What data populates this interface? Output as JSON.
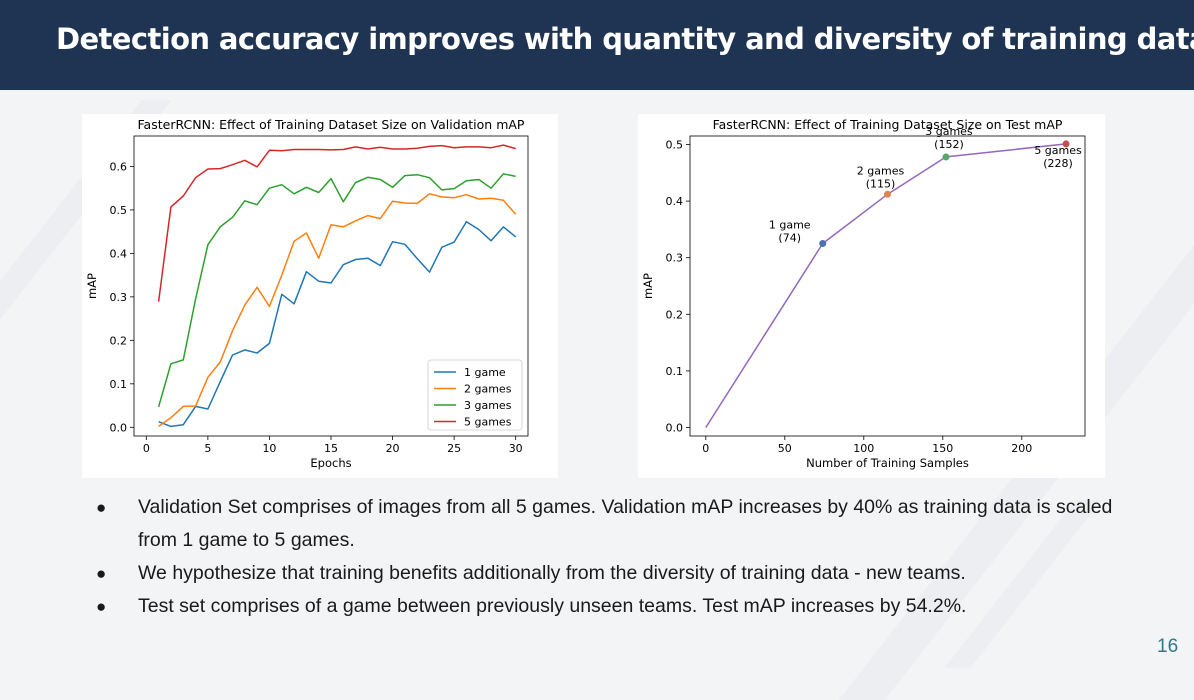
{
  "slide": {
    "title": "Detection accuracy improves with quantity and diversity of training data.",
    "page_number": "16",
    "bullets": [
      "Validation Set comprises of images from all 5 games. Validation mAP increases by 40% as training data is scaled from 1 game to 5 games.",
      "We hypothesize that training benefits additionally from the diversity of training data - new teams.",
      "Test set comprises of a game between previously unseen teams. Test mAP increases by 54.2%."
    ],
    "bullet_symbol": "●"
  },
  "chart_data": [
    {
      "type": "line",
      "title": "FasterRCNN: Effect of Training Dataset Size on Validation mAP",
      "xlabel": "Epochs",
      "ylabel": "mAP",
      "xlim": [
        -1,
        31
      ],
      "ylim": [
        -0.02,
        0.67
      ],
      "xticks": [
        "0",
        "5",
        "10",
        "15",
        "20",
        "25",
        "30"
      ],
      "yticks": [
        "0.0",
        "0.1",
        "0.2",
        "0.3",
        "0.4",
        "0.5",
        "0.6"
      ],
      "legend": "bottom-right",
      "grid": false,
      "x": [
        1,
        2,
        3,
        4,
        5,
        6,
        7,
        8,
        9,
        10,
        11,
        12,
        13,
        14,
        15,
        16,
        17,
        18,
        19,
        20,
        21,
        22,
        23,
        24,
        25,
        26,
        27,
        28,
        29,
        30
      ],
      "series": [
        {
          "name": "1 game",
          "color": "#1f77b4",
          "values": [
            0.013,
            0.002,
            0.006,
            0.048,
            0.042,
            0.105,
            0.166,
            0.178,
            0.171,
            0.193,
            0.306,
            0.284,
            0.358,
            0.336,
            0.332,
            0.374,
            0.386,
            0.389,
            0.372,
            0.427,
            0.421,
            0.388,
            0.357,
            0.414,
            0.426,
            0.473,
            0.455,
            0.429,
            0.461,
            0.438
          ]
        },
        {
          "name": "2 games",
          "color": "#ff7f0e",
          "values": [
            0.002,
            0.022,
            0.048,
            0.049,
            0.115,
            0.15,
            0.222,
            0.281,
            0.322,
            0.278,
            0.35,
            0.428,
            0.447,
            0.389,
            0.466,
            0.461,
            0.475,
            0.487,
            0.48,
            0.52,
            0.516,
            0.515,
            0.537,
            0.53,
            0.528,
            0.535,
            0.525,
            0.527,
            0.522,
            0.49
          ]
        },
        {
          "name": "3 games",
          "color": "#2ca02c",
          "values": [
            0.047,
            0.146,
            0.155,
            0.295,
            0.42,
            0.461,
            0.483,
            0.521,
            0.512,
            0.55,
            0.558,
            0.537,
            0.552,
            0.54,
            0.572,
            0.519,
            0.563,
            0.575,
            0.57,
            0.552,
            0.579,
            0.581,
            0.574,
            0.546,
            0.549,
            0.567,
            0.57,
            0.55,
            0.583,
            0.577
          ]
        },
        {
          "name": "5 games",
          "color": "#d62728",
          "values": [
            0.289,
            0.507,
            0.532,
            0.574,
            0.594,
            0.595,
            0.604,
            0.614,
            0.599,
            0.637,
            0.636,
            0.639,
            0.639,
            0.639,
            0.638,
            0.639,
            0.645,
            0.64,
            0.644,
            0.64,
            0.64,
            0.642,
            0.646,
            0.648,
            0.643,
            0.645,
            0.645,
            0.643,
            0.649,
            0.641
          ]
        }
      ]
    },
    {
      "type": "line",
      "title": "FasterRCNN: Effect of Training Dataset Size on Test mAP",
      "xlabel": "Number of Training Samples",
      "ylabel": "mAP",
      "xlim": [
        -10,
        240
      ],
      "ylim": [
        -0.015,
        0.515
      ],
      "xticks": [
        "0",
        "50",
        "100",
        "150",
        "200"
      ],
      "yticks": [
        "0.0",
        "0.1",
        "0.2",
        "0.3",
        "0.4",
        "0.5"
      ],
      "grid": false,
      "line_color": "#9467bd",
      "x": [
        0,
        74,
        115,
        152,
        228
      ],
      "values": [
        0.0,
        0.325,
        0.412,
        0.478,
        0.501
      ],
      "point_colors": [
        null,
        "#4c72b0",
        "#dd8452",
        "#55a868",
        "#c44e52"
      ],
      "annotations": [
        {
          "text": [
            "1 game",
            "(74)"
          ],
          "x": 74,
          "y": 0.325
        },
        {
          "text": [
            "2 games",
            "(115)"
          ],
          "x": 115,
          "y": 0.412
        },
        {
          "text": [
            "3 games",
            "(152)"
          ],
          "x": 152,
          "y": 0.478
        },
        {
          "text": [
            "5 games",
            "(228)"
          ],
          "x": 228,
          "y": 0.501
        }
      ]
    }
  ]
}
